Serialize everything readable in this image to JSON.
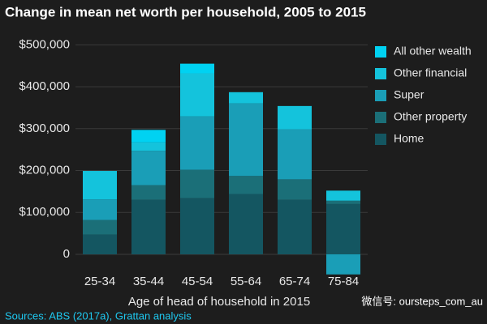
{
  "chart_data": {
    "type": "stacked_bar",
    "title": "Change in mean net worth per household, 2005 to 2015",
    "x_label": "Age of head of household in 2015",
    "source": "Sources: ABS (2017a), Grattan analysis",
    "watermark": "微信号: oursteps_com_au",
    "categories": [
      "25-34",
      "35-44",
      "45-54",
      "55-64",
      "65-74",
      "75-84"
    ],
    "series": [
      {
        "name": "Home",
        "color": "#145661",
        "values": [
          47000,
          130000,
          134000,
          144000,
          130000,
          120000
        ]
      },
      {
        "name": "Other property",
        "color": "#1b6f78",
        "values": [
          35000,
          35000,
          68000,
          43000,
          49000,
          8000
        ]
      },
      {
        "name": "Super",
        "color": "#1a9eb7",
        "values": [
          49000,
          82000,
          127000,
          173000,
          119000,
          -48000
        ]
      },
      {
        "name": "Other financial",
        "color": "#14c3dc",
        "values": [
          68000,
          20000,
          103000,
          27000,
          56000,
          24000
        ]
      },
      {
        "name": "All other wealth",
        "color": "#00d2f2",
        "values": [
          0,
          30000,
          23000,
          0,
          0,
          0
        ]
      }
    ],
    "ylim": [
      -60000,
      520000
    ],
    "yticks": [
      0,
      {
        "value": 100000,
        "label": "$100,000"
      },
      {
        "value": 200000,
        "label": "$200,000"
      },
      {
        "value": 300000,
        "label": "$300,000"
      },
      {
        "value": 400000,
        "label": "$400,000"
      },
      {
        "value": 500000,
        "label": "$500,000"
      }
    ],
    "grid": true
  }
}
